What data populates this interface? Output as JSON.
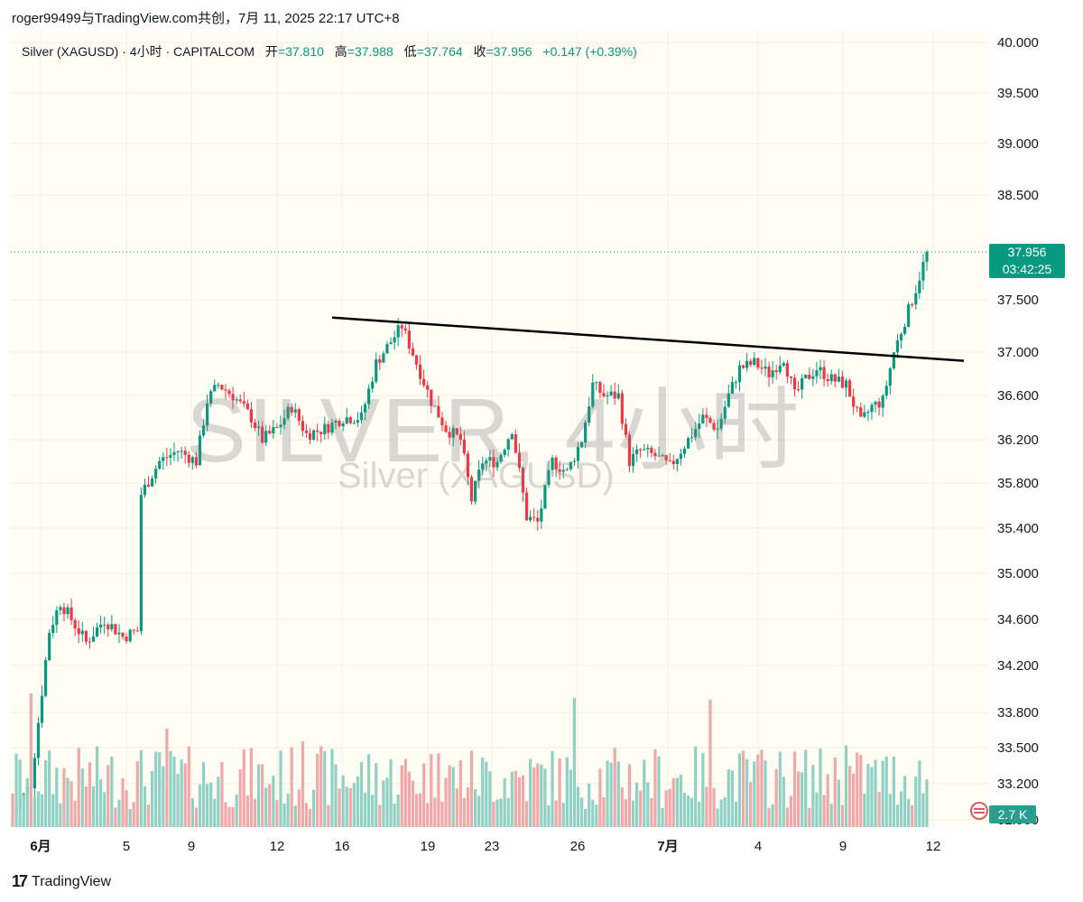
{
  "header": {
    "topline": "roger99499与TradingView.com共创，7月 11, 2025 22:17 UTC+8"
  },
  "legend": {
    "symbol": "Silver (XAGUSD) · 4小时 · CAPITALCOM",
    "open_label": "开",
    "open": "=37.810",
    "high_label": "高",
    "high": "=37.988",
    "low_label": "低",
    "low": "=37.764",
    "close_label": "收",
    "close": "=37.956",
    "change": "+0.147 (+0.39%)"
  },
  "watermark": {
    "big": "SILVER, 4小时",
    "small": "Silver (XAGUSD)"
  },
  "price_tag": {
    "value": "37.956",
    "countdown": "03:42:25"
  },
  "volume_tag": "2.7 K",
  "footer": {
    "logo_mark": "17",
    "logo_text": "TradingView"
  },
  "colors": {
    "up": "#089981",
    "down": "#f23645",
    "vol_up": "#8fd1c5",
    "vol_down": "#f1a8a8",
    "background": "#fffdf4",
    "trendline": "#000000"
  },
  "icons": {
    "flag": "us-flag-icon"
  },
  "chart_data": {
    "type": "candlestick",
    "interval": "4h",
    "x_ticks": [
      "6月",
      "5",
      "9",
      "12",
      "16",
      "19",
      "23",
      "26",
      "7月",
      "4",
      "9",
      "12"
    ],
    "y_ticks": [
      "40.000",
      "39.500",
      "39.000",
      "38.500",
      "37.500",
      "37.000",
      "36.600",
      "36.200",
      "35.800",
      "35.400",
      "35.000",
      "34.600",
      "34.200",
      "33.800",
      "33.500",
      "33.200",
      "32.900"
    ],
    "last_price": 37.956,
    "trendline": {
      "from": [
        "Jun 15",
        37.33
      ],
      "to": [
        "Jul 12",
        36.92
      ]
    },
    "anchors": [
      [
        0,
        32.95
      ],
      [
        5,
        33.2
      ],
      [
        10,
        34.5
      ],
      [
        13,
        34.75
      ],
      [
        20,
        34.4
      ],
      [
        25,
        34.6
      ],
      [
        30,
        34.45
      ],
      [
        34,
        34.5
      ],
      [
        35,
        35.7
      ],
      [
        40,
        36.0
      ],
      [
        45,
        36.1
      ],
      [
        50,
        36.0
      ],
      [
        53,
        36.55
      ],
      [
        56,
        36.7
      ],
      [
        60,
        36.6
      ],
      [
        65,
        36.4
      ],
      [
        68,
        36.2
      ],
      [
        72,
        36.3
      ],
      [
        76,
        36.5
      ],
      [
        80,
        36.25
      ],
      [
        85,
        36.3
      ],
      [
        90,
        36.4
      ],
      [
        95,
        36.4
      ],
      [
        99,
        36.9
      ],
      [
        103,
        37.1
      ],
      [
        106,
        37.25
      ],
      [
        110,
        36.9
      ],
      [
        114,
        36.55
      ],
      [
        118,
        36.3
      ],
      [
        122,
        36.2
      ],
      [
        125,
        35.65
      ],
      [
        128,
        36.0
      ],
      [
        132,
        36.0
      ],
      [
        136,
        36.3
      ],
      [
        140,
        35.5
      ],
      [
        143,
        35.45
      ],
      [
        147,
        36.0
      ],
      [
        151,
        35.9
      ],
      [
        155,
        36.2
      ],
      [
        158,
        36.7
      ],
      [
        161,
        36.6
      ],
      [
        165,
        36.6
      ],
      [
        168,
        36.0
      ],
      [
        171,
        36.1
      ],
      [
        175,
        36.05
      ],
      [
        179,
        35.95
      ],
      [
        184,
        36.2
      ],
      [
        188,
        36.4
      ],
      [
        192,
        36.3
      ],
      [
        195,
        36.6
      ],
      [
        198,
        36.85
      ],
      [
        202,
        36.9
      ],
      [
        206,
        36.8
      ],
      [
        210,
        36.95
      ],
      [
        213,
        36.6
      ],
      [
        216,
        36.75
      ],
      [
        219,
        36.85
      ],
      [
        223,
        36.75
      ],
      [
        227,
        36.7
      ],
      [
        231,
        36.35
      ],
      [
        234,
        36.5
      ],
      [
        237,
        36.55
      ],
      [
        240,
        37.0
      ],
      [
        243,
        37.3
      ],
      [
        246,
        37.6
      ],
      [
        249,
        37.956
      ]
    ]
  }
}
